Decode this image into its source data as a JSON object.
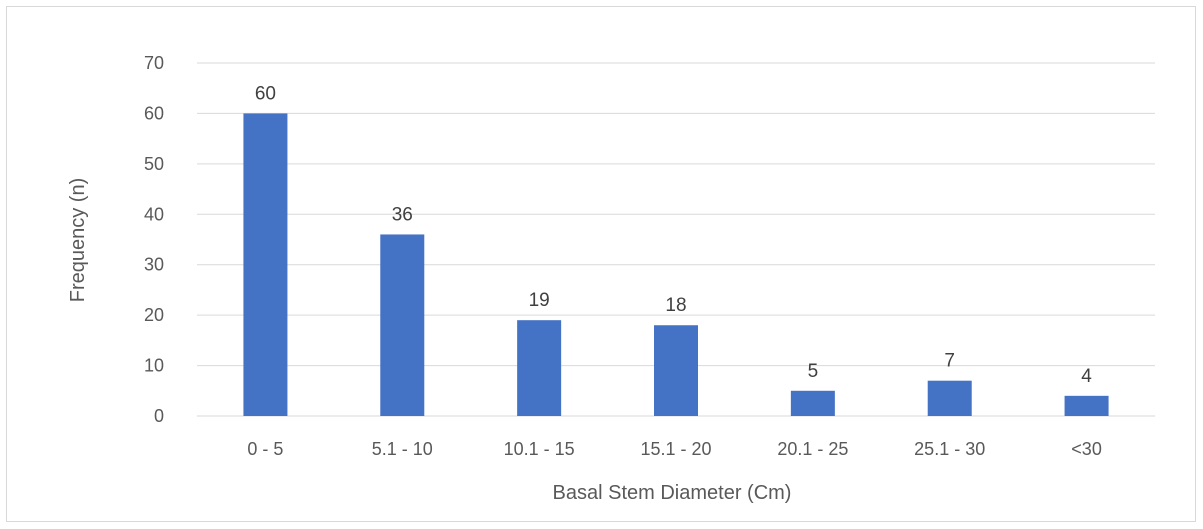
{
  "chart_data": {
    "type": "bar",
    "title": "",
    "xlabel": "Basal Stem Diameter (Cm)",
    "ylabel": "Frequency (n)",
    "categories": [
      "0 - 5",
      "5.1 - 10",
      "10.1 - 15",
      "15.1 - 20",
      "20.1 - 25",
      "25.1 - 30",
      "<30"
    ],
    "values": [
      60,
      36,
      19,
      18,
      5,
      7,
      4
    ],
    "ylim": [
      0,
      70
    ],
    "yticks": [
      0,
      10,
      20,
      30,
      40,
      50,
      60,
      70
    ],
    "grid": true,
    "legend": "none",
    "data_labels": true,
    "colors": {
      "bar": "#4472c4",
      "grid": "#d9d9d9",
      "axis_text": "#595959",
      "label_text": "#404040"
    }
  }
}
